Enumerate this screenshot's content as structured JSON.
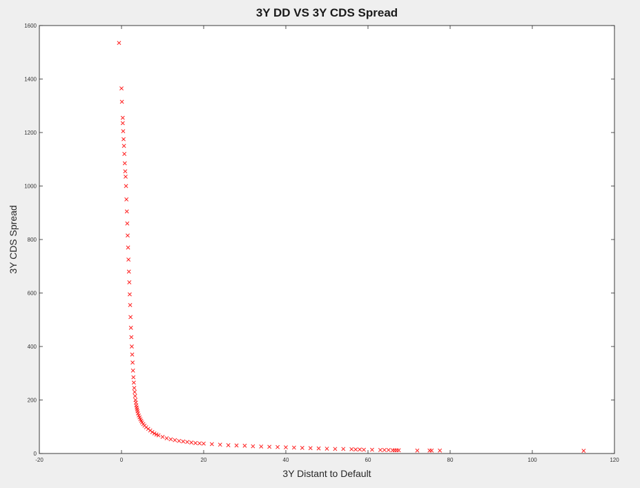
{
  "chart_data": {
    "type": "scatter",
    "title": "3Y DD VS 3Y CDS Spread",
    "xlabel": "3Y Distant to Default",
    "ylabel": "3Y CDS Spread",
    "xlim": [
      -20,
      120
    ],
    "ylim": [
      0,
      1600
    ],
    "xticks": [
      -20,
      0,
      20,
      40,
      60,
      80,
      100,
      120
    ],
    "yticks": [
      0,
      200,
      400,
      600,
      800,
      1000,
      1200,
      1400,
      1600
    ],
    "grid": false,
    "marker": "x",
    "color": "#ff2020",
    "series": [
      {
        "x": [
          -0.6,
          0.0,
          0.1,
          0.3,
          0.3,
          0.4,
          0.5,
          0.6,
          0.7,
          0.8,
          0.9,
          1.0,
          1.1,
          1.2,
          1.3,
          1.4,
          1.5,
          1.6,
          1.7,
          1.8,
          1.9,
          2.0,
          2.1,
          2.2,
          2.3,
          2.4,
          2.5,
          2.6,
          2.7,
          2.8,
          2.9,
          3.0,
          3.1,
          3.2,
          3.3,
          3.4,
          3.5,
          3.6,
          3.7,
          3.8,
          3.9,
          4.0,
          4.2,
          4.4,
          4.6,
          4.8,
          5.0,
          5.3,
          5.6,
          6.0,
          6.5,
          7.0,
          7.5,
          8.0,
          8.5,
          9.0,
          10.0,
          11.0,
          12.0,
          13.0,
          14.0,
          15.0,
          16.0,
          17.0,
          18.0,
          19.0,
          20.0,
          22.0,
          24.0,
          26.0,
          28.0,
          30.0,
          32.0,
          34.0,
          36.0,
          38.0,
          40.0,
          42.0,
          44.0,
          46.0,
          48.0,
          50.0,
          52.0,
          54.0,
          56.0,
          57.0,
          58.0,
          59.0,
          61.0,
          63.0,
          64.0,
          65.0,
          66.0,
          66.5,
          67.0,
          67.5,
          72.0,
          75.0,
          75.5,
          77.5,
          112.5
        ],
        "y": [
          1535,
          1365,
          1315,
          1255,
          1235,
          1205,
          1175,
          1150,
          1120,
          1085,
          1055,
          1035,
          1000,
          950,
          905,
          860,
          815,
          770,
          725,
          680,
          640,
          595,
          555,
          510,
          470,
          435,
          400,
          370,
          340,
          310,
          285,
          265,
          245,
          230,
          215,
          200,
          190,
          180,
          172,
          165,
          158,
          150,
          142,
          135,
          128,
          122,
          116,
          110,
          104,
          98,
          92,
          86,
          80,
          75,
          71,
          68,
          62,
          57,
          53,
          50,
          47,
          45,
          43,
          41,
          39,
          38,
          37,
          35,
          33,
          31,
          30,
          29,
          27,
          26,
          25,
          24,
          23,
          22,
          21,
          20,
          19,
          18,
          17,
          17,
          16,
          15,
          15,
          14,
          14,
          13,
          13,
          13,
          12,
          12,
          12,
          12,
          11,
          11,
          11,
          11,
          10
        ]
      }
    ]
  }
}
